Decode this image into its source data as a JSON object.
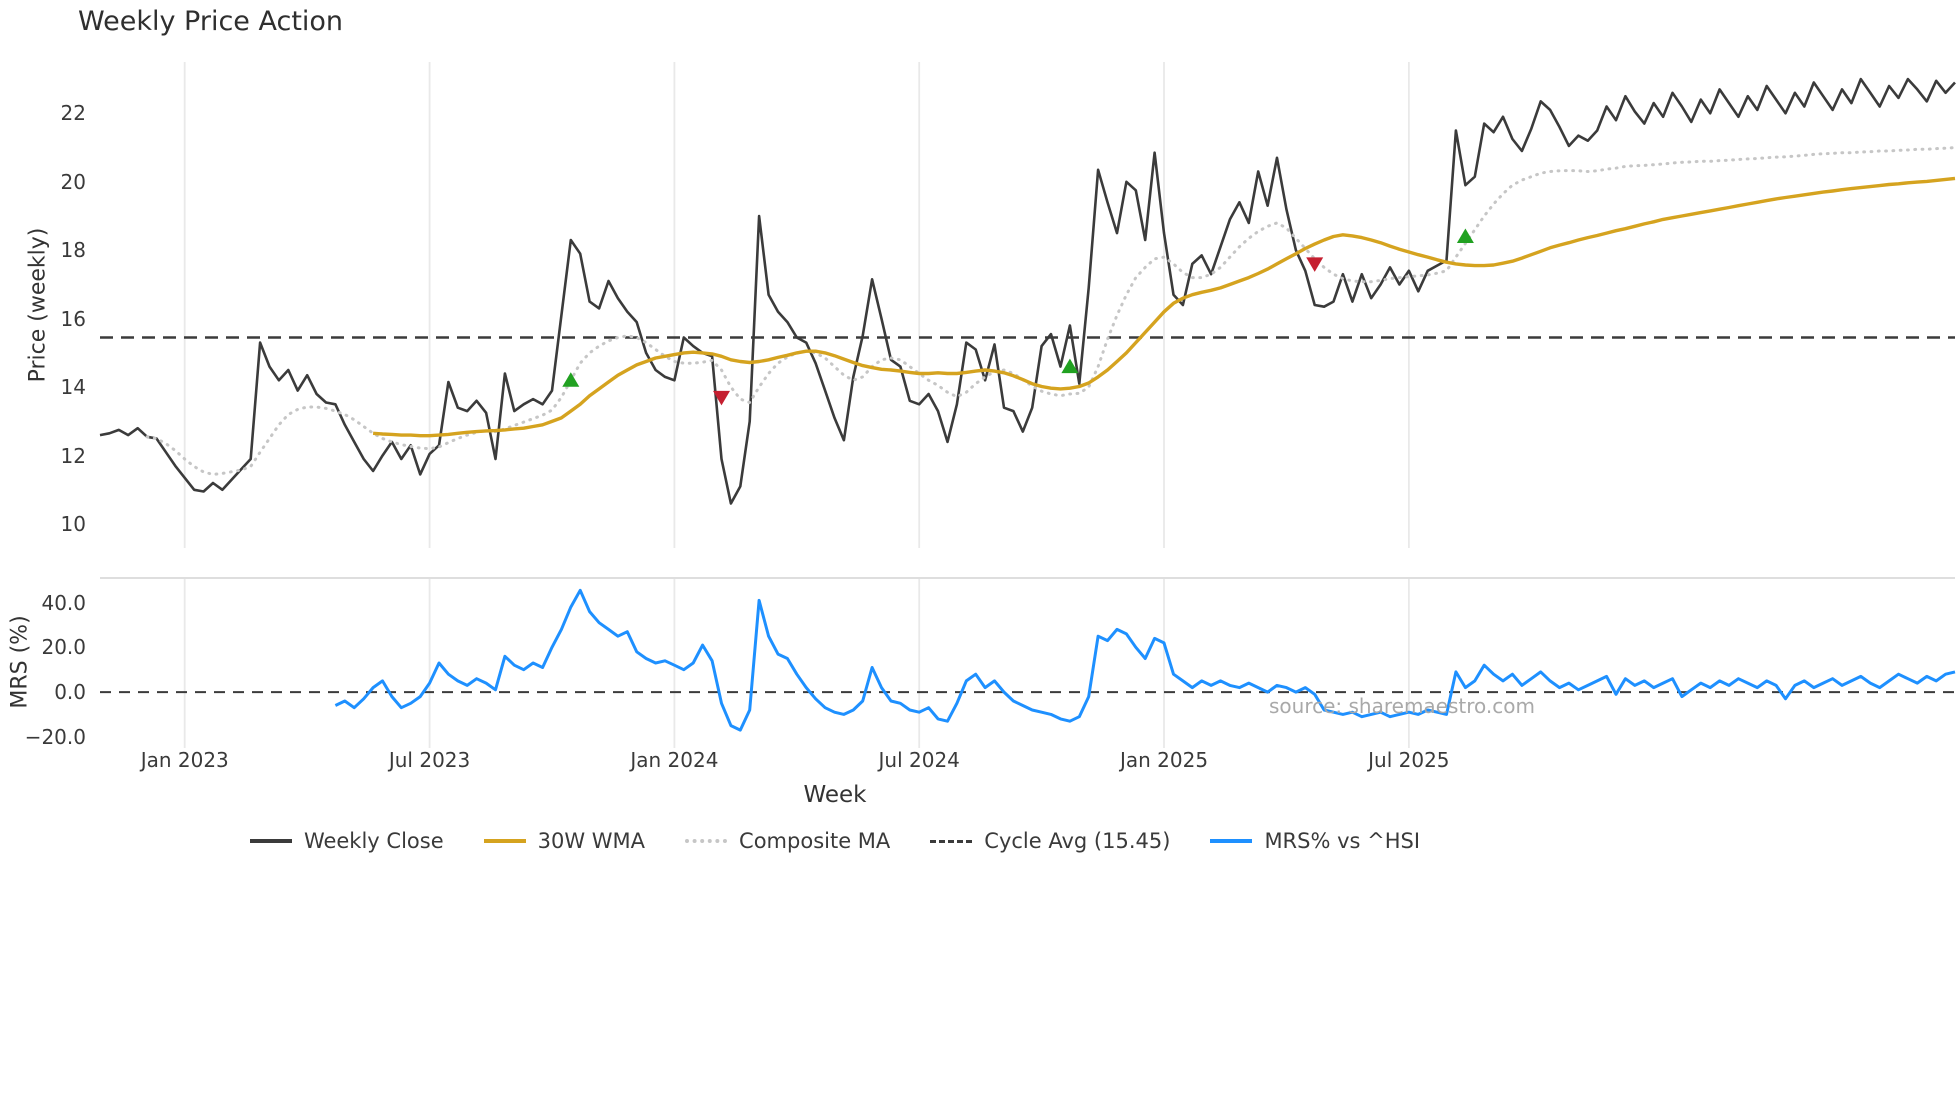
{
  "title": "Weekly Price Action",
  "watermark": "source: sharemaestro.com",
  "axes": {
    "price_label": "Price (weekly)",
    "mrs_label": "MRS (%)",
    "x_label": "Week"
  },
  "legend": [
    {
      "label": "Weekly Close",
      "color": "#3b3b3b",
      "style": "solid"
    },
    {
      "label": "30W WMA",
      "color": "#d5a31f",
      "style": "solid"
    },
    {
      "label": "Composite MA",
      "color": "#c6c6c6",
      "style": "dotted"
    },
    {
      "label": "Cycle Avg (15.45)",
      "color": "#3b3b3b",
      "style": "dashed"
    },
    {
      "label": "MRS% vs ^HSI",
      "color": "#1e90ff",
      "style": "solid"
    }
  ],
  "chart_data": {
    "type": "line",
    "title": "Weekly Price Action",
    "xlabel": "Week",
    "x_unit": "week_index",
    "legend_position": "bottom center",
    "grid": "vertical-only",
    "colors": {
      "close": "#3b3b3b",
      "wma": "#d5a31f",
      "composite": "#c6c6c6",
      "cycle": "#3b3b3b",
      "mrs": "#1e90ff",
      "buy": "#21a121",
      "sell": "#c51f30",
      "grid": "#e9e9e9",
      "spine": "#dedede"
    },
    "x_ticks": {
      "positions": [
        9,
        35,
        61,
        87,
        113,
        139
      ],
      "labels": [
        "Jan 2023",
        "Jul 2023",
        "Jan 2024",
        "Jul 2024",
        "Jan 2025",
        "Jul 2025"
      ]
    },
    "price_panel": {
      "ylabel": "Price (weekly)",
      "ylim": [
        9.3,
        23.5
      ],
      "yticks": [
        10,
        12,
        14,
        16,
        18,
        20,
        22
      ],
      "ytick_labels": [
        "10",
        "12",
        "14",
        "16",
        "18",
        "20",
        "22"
      ],
      "cycle_avg": 15.45,
      "series": [
        {
          "name": "Weekly Close",
          "values": [
            12.6,
            12.65,
            12.75,
            12.6,
            12.8,
            12.55,
            12.5,
            12.1,
            11.7,
            11.35,
            11.0,
            10.95,
            11.2,
            11.0,
            11.3,
            11.6,
            11.9,
            15.3,
            14.6,
            14.2,
            14.5,
            13.9,
            14.35,
            13.8,
            13.55,
            13.5,
            12.9,
            12.4,
            11.9,
            11.55,
            12.0,
            12.4,
            11.9,
            12.3,
            11.45,
            12.05,
            12.3,
            14.15,
            13.4,
            13.3,
            13.6,
            13.25,
            11.9,
            14.4,
            13.3,
            13.5,
            13.65,
            13.5,
            13.9,
            16.1,
            18.3,
            17.9,
            16.5,
            16.3,
            17.1,
            16.6,
            16.2,
            15.9,
            15.0,
            14.5,
            14.3,
            14.2,
            15.45,
            15.2,
            15.0,
            14.9,
            11.9,
            10.6,
            11.1,
            13.0,
            19.0,
            16.7,
            16.2,
            15.9,
            15.45,
            15.3,
            14.7,
            13.9,
            13.1,
            12.45,
            14.3,
            15.5,
            17.15,
            16.0,
            14.8,
            14.6,
            13.6,
            13.5,
            13.8,
            13.3,
            12.4,
            13.5,
            15.3,
            15.1,
            14.2,
            15.25,
            13.4,
            13.3,
            12.7,
            13.4,
            15.2,
            15.55,
            14.6,
            15.8,
            14.1,
            16.9,
            20.35,
            19.4,
            18.5,
            20.0,
            19.75,
            18.3,
            20.85,
            18.5,
            16.7,
            16.4,
            17.6,
            17.85,
            17.3,
            18.1,
            18.9,
            19.4,
            18.8,
            20.3,
            19.3,
            20.7,
            19.2,
            18.0,
            17.4,
            16.4,
            16.35,
            16.5,
            17.3,
            16.5,
            17.3,
            16.6,
            17.0,
            17.5,
            17.0,
            17.4,
            16.8,
            17.4,
            17.55,
            17.7,
            21.5,
            19.9,
            20.15,
            21.7,
            21.45,
            21.9,
            21.25,
            20.9,
            21.55,
            22.35,
            22.1,
            21.6,
            21.05,
            21.35,
            21.2,
            21.5,
            22.2,
            21.8,
            22.5,
            22.05,
            21.7,
            22.3,
            21.9,
            22.6,
            22.2,
            21.75,
            22.4,
            22.0,
            22.7,
            22.3,
            21.9,
            22.5,
            22.1,
            22.8,
            22.4,
            22.0,
            22.6,
            22.2,
            22.9,
            22.5,
            22.1,
            22.7,
            22.3,
            23.0,
            22.6,
            22.2,
            22.8,
            22.45,
            23.0,
            22.7,
            22.35,
            22.95,
            22.6,
            22.9
          ]
        },
        {
          "name": "30W WMA",
          "values": [
            null,
            null,
            null,
            null,
            null,
            null,
            null,
            null,
            null,
            null,
            null,
            null,
            null,
            null,
            null,
            null,
            null,
            null,
            null,
            null,
            null,
            null,
            null,
            null,
            null,
            null,
            null,
            null,
            null,
            12.65,
            12.63,
            12.62,
            12.6,
            12.6,
            12.58,
            12.58,
            12.6,
            12.62,
            12.65,
            12.68,
            12.7,
            12.72,
            12.73,
            12.75,
            12.78,
            12.8,
            12.85,
            12.9,
            13.0,
            13.1,
            13.3,
            13.5,
            13.75,
            13.95,
            14.15,
            14.35,
            14.5,
            14.65,
            14.75,
            14.85,
            14.9,
            14.95,
            15.0,
            15.02,
            15.0,
            14.97,
            14.9,
            14.8,
            14.75,
            14.72,
            14.75,
            14.8,
            14.87,
            14.93,
            15.0,
            15.05,
            15.05,
            15.0,
            14.92,
            14.82,
            14.72,
            14.63,
            14.57,
            14.52,
            14.5,
            14.47,
            14.43,
            14.4,
            14.4,
            14.42,
            14.4,
            14.4,
            14.43,
            14.47,
            14.5,
            14.47,
            14.42,
            14.33,
            14.22,
            14.1,
            14.02,
            13.97,
            13.95,
            13.97,
            14.02,
            14.12,
            14.3,
            14.5,
            14.75,
            15.0,
            15.3,
            15.6,
            15.9,
            16.2,
            16.45,
            16.6,
            16.7,
            16.77,
            16.83,
            16.9,
            17.0,
            17.1,
            17.2,
            17.32,
            17.45,
            17.6,
            17.75,
            17.9,
            18.05,
            18.18,
            18.3,
            18.4,
            18.45,
            18.42,
            18.37,
            18.3,
            18.22,
            18.12,
            18.03,
            17.95,
            17.87,
            17.8,
            17.72,
            17.65,
            17.6,
            17.57,
            17.55,
            17.55,
            17.57,
            17.62,
            17.68,
            17.77,
            17.87,
            17.97,
            18.07,
            18.15,
            18.22,
            18.3,
            18.37,
            18.43,
            18.5,
            18.57,
            18.63,
            18.7,
            18.77,
            18.83,
            18.9,
            18.95,
            19.0,
            19.05,
            19.1,
            19.15,
            19.2,
            19.25,
            19.3,
            19.35,
            19.4,
            19.45,
            19.5,
            19.54,
            19.58,
            19.62,
            19.66,
            19.7,
            19.73,
            19.77,
            19.8,
            19.83,
            19.86,
            19.89,
            19.92,
            19.94,
            19.97,
            19.99,
            20.01,
            20.04,
            20.07,
            20.1
          ]
        },
        {
          "name": "Composite MA",
          "values": [
            null,
            null,
            null,
            null,
            null,
            12.55,
            12.5,
            12.35,
            12.15,
            11.9,
            11.68,
            11.52,
            11.45,
            11.48,
            11.53,
            11.58,
            11.68,
            12.1,
            12.5,
            12.9,
            13.2,
            13.35,
            13.42,
            13.42,
            13.38,
            13.3,
            13.2,
            13.05,
            12.85,
            12.65,
            12.5,
            12.4,
            12.32,
            12.27,
            12.22,
            12.2,
            12.25,
            12.38,
            12.5,
            12.6,
            12.68,
            12.73,
            12.7,
            12.78,
            12.88,
            12.98,
            13.08,
            13.18,
            13.33,
            13.7,
            14.2,
            14.7,
            15.0,
            15.2,
            15.35,
            15.45,
            15.5,
            15.45,
            15.3,
            15.1,
            14.9,
            14.75,
            14.7,
            14.7,
            14.73,
            14.78,
            14.5,
            14.0,
            13.65,
            13.55,
            14.0,
            14.4,
            14.7,
            14.88,
            15.0,
            15.05,
            15.0,
            14.85,
            14.6,
            14.35,
            14.2,
            14.3,
            14.6,
            14.8,
            14.85,
            14.8,
            14.6,
            14.4,
            14.2,
            14.05,
            13.85,
            13.72,
            13.85,
            14.1,
            14.3,
            14.45,
            14.5,
            14.4,
            14.22,
            14.03,
            13.88,
            13.8,
            13.75,
            13.8,
            13.82,
            14.0,
            14.6,
            15.4,
            16.1,
            16.7,
            17.2,
            17.5,
            17.75,
            17.8,
            17.6,
            17.35,
            17.2,
            17.2,
            17.3,
            17.5,
            17.8,
            18.1,
            18.35,
            18.55,
            18.7,
            18.8,
            18.65,
            18.35,
            18.05,
            17.75,
            17.5,
            17.3,
            17.17,
            17.1,
            17.08,
            17.08,
            17.12,
            17.17,
            17.2,
            17.23,
            17.25,
            17.28,
            17.33,
            17.4,
            17.8,
            18.2,
            18.6,
            19.0,
            19.35,
            19.65,
            19.9,
            20.05,
            20.15,
            20.25,
            20.3,
            20.32,
            20.33,
            20.32,
            20.3,
            20.32,
            20.37,
            20.4,
            20.45,
            20.47,
            20.48,
            20.5,
            20.52,
            20.55,
            20.57,
            20.58,
            20.6,
            20.6,
            20.62,
            20.63,
            20.65,
            20.67,
            20.68,
            20.7,
            20.72,
            20.73,
            20.75,
            20.77,
            20.8,
            20.82,
            20.83,
            20.85,
            20.85,
            20.87,
            20.88,
            20.9,
            20.9,
            20.92,
            20.93,
            20.95,
            20.95,
            20.97,
            20.98,
            21.0
          ]
        }
      ],
      "buy_signals": [
        [
          50,
          14.2
        ],
        [
          103,
          14.6
        ],
        [
          145,
          18.4
        ]
      ],
      "sell_signals": [
        [
          66,
          13.7
        ],
        [
          129,
          17.6
        ]
      ]
    },
    "mrs_panel": {
      "ylabel": "MRS (%)",
      "ylim": [
        -25,
        51
      ],
      "yticks": [
        -20,
        0,
        20,
        40
      ],
      "ytick_labels": [
        "−20.0",
        "0.0",
        "20.0",
        "40.0"
      ],
      "zero_line": 0,
      "series": [
        {
          "name": "MRS% vs ^HSI",
          "values": [
            null,
            null,
            null,
            null,
            null,
            null,
            null,
            null,
            null,
            null,
            null,
            null,
            null,
            null,
            null,
            null,
            null,
            null,
            null,
            null,
            null,
            null,
            null,
            null,
            null,
            -6,
            -4,
            -7,
            -3,
            2,
            5,
            -2,
            -7,
            -5,
            -2,
            4,
            13,
            8,
            5,
            3,
            6,
            4,
            1,
            16,
            12,
            10,
            13,
            11,
            20,
            28,
            38,
            45.5,
            36,
            31,
            28,
            25,
            27,
            18,
            15,
            13,
            14,
            12,
            10,
            13,
            21,
            14,
            -5,
            -15,
            -17,
            -8,
            41,
            25,
            17,
            15,
            8,
            2,
            -3,
            -7,
            -9,
            -10,
            -8,
            -4,
            11,
            2,
            -4,
            -5,
            -8,
            -9,
            -7,
            -12,
            -13,
            -5,
            5,
            8,
            2,
            5,
            0,
            -4,
            -6,
            -8,
            -9,
            -10,
            -12,
            -13,
            -11,
            -2,
            25,
            23,
            28,
            26,
            20,
            15,
            24,
            22,
            8,
            5,
            2,
            5,
            3,
            5,
            3,
            2,
            4,
            2,
            0,
            3,
            2,
            0,
            2,
            -1,
            -8,
            -9,
            -10,
            -9,
            -11,
            -10,
            -9,
            -11,
            -10,
            -9,
            -10,
            -8,
            -9,
            -10,
            9,
            2,
            5,
            12,
            8,
            5,
            8,
            3,
            6,
            9,
            5,
            2,
            4,
            1,
            3,
            5,
            7,
            -1,
            6,
            3,
            5,
            2,
            4,
            6,
            -2,
            1,
            4,
            2,
            5,
            3,
            6,
            4,
            2,
            5,
            3,
            -3,
            3,
            5,
            2,
            4,
            6,
            3,
            5,
            7,
            4,
            2,
            5,
            8,
            6,
            4,
            7,
            5,
            8,
            9
          ]
        }
      ]
    }
  }
}
